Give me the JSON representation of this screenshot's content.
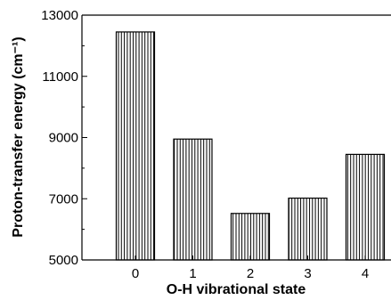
{
  "chart_data": {
    "type": "bar",
    "categories": [
      "0",
      "1",
      "2",
      "3",
      "4"
    ],
    "values": [
      12450,
      8950,
      6520,
      7020,
      8450
    ],
    "xlabel": "O-H vibrational state",
    "ylabel": "Proton-transfer energy (cm⁻¹)",
    "ylim": [
      5000,
      13000
    ],
    "yticks": [
      5000,
      7000,
      9000,
      11000,
      13000
    ],
    "bar_pattern": "vertical-hatch",
    "grid": false,
    "colors": {
      "bar_stroke": "#000000",
      "bar_fill": "#ffffff",
      "axis": "#000000"
    }
  }
}
